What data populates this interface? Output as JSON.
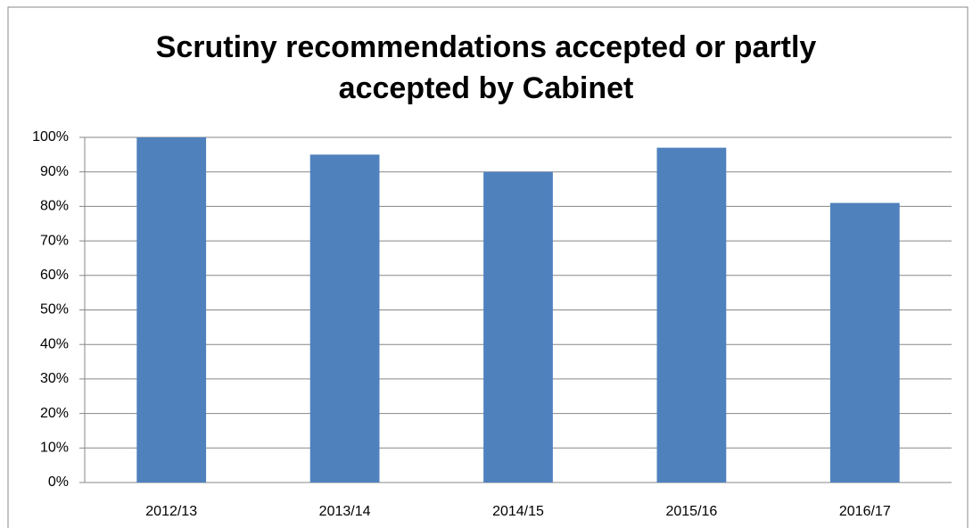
{
  "chart_data": {
    "type": "bar",
    "title": "Scrutiny recommendations accepted or partly accepted by Cabinet",
    "categories": [
      "2012/13",
      "2013/14",
      "2014/15",
      "2015/16",
      "2016/17"
    ],
    "values": [
      100,
      95,
      90,
      97,
      81
    ],
    "color": "#4f81bd",
    "ylim": [
      0,
      100
    ],
    "yticks": [
      {
        "value": 0,
        "label": "0%"
      },
      {
        "value": 10,
        "label": "10%"
      },
      {
        "value": 20,
        "label": "20%"
      },
      {
        "value": 30,
        "label": "30%"
      },
      {
        "value": 40,
        "label": "40%"
      },
      {
        "value": 50,
        "label": "50%"
      },
      {
        "value": 60,
        "label": "60%"
      },
      {
        "value": 70,
        "label": "70%"
      },
      {
        "value": 80,
        "label": "80%"
      },
      {
        "value": 90,
        "label": "90%"
      },
      {
        "value": 100,
        "label": "100%"
      }
    ],
    "grid": true
  }
}
